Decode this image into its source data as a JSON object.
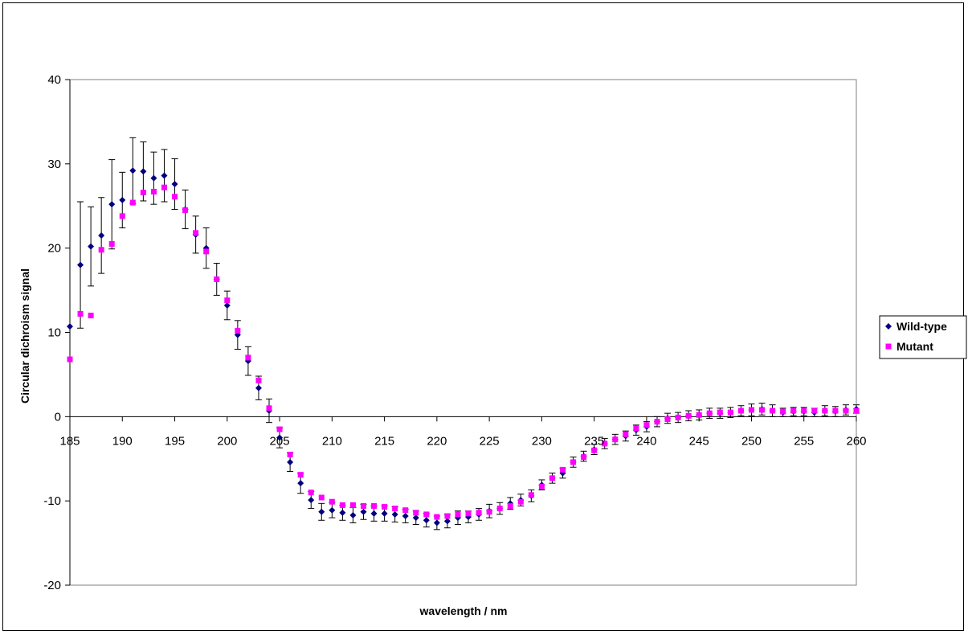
{
  "chart_data": {
    "type": "scatter",
    "title": "",
    "xlabel": "wavelength / nm",
    "ylabel": "Circular dichroism signal",
    "xlim": [
      185,
      260
    ],
    "ylim": [
      -20,
      40
    ],
    "x_ticks": [
      "185",
      "190",
      "195",
      "200",
      "205",
      "210",
      "215",
      "220",
      "225",
      "230",
      "235",
      "240",
      "245",
      "250",
      "255",
      "260"
    ],
    "y_ticks": [
      "40",
      "30",
      "20",
      "10",
      "0",
      "-10",
      "-20"
    ],
    "grid": false,
    "legend_position": "right",
    "x": [
      185,
      186,
      187,
      188,
      189,
      190,
      191,
      192,
      193,
      194,
      195,
      196,
      197,
      198,
      199,
      200,
      201,
      202,
      203,
      204,
      205,
      206,
      207,
      208,
      209,
      210,
      211,
      212,
      213,
      214,
      215,
      216,
      217,
      218,
      219,
      220,
      221,
      222,
      223,
      224,
      225,
      226,
      227,
      228,
      229,
      230,
      231,
      232,
      233,
      234,
      235,
      236,
      237,
      238,
      239,
      240,
      241,
      242,
      243,
      244,
      245,
      246,
      247,
      248,
      249,
      250,
      251,
      252,
      253,
      254,
      255,
      256,
      257,
      258,
      259,
      260
    ],
    "series": [
      {
        "name": "Wild-type",
        "color": "#000080",
        "marker": "diamond",
        "values": [
          10.7,
          18.0,
          20.2,
          21.5,
          25.2,
          25.7,
          29.2,
          29.1,
          28.3,
          28.6,
          27.6,
          24.6,
          21.6,
          20.0,
          16.3,
          13.2,
          9.7,
          6.6,
          3.4,
          0.7,
          -2.5,
          -5.4,
          -7.9,
          -9.9,
          -11.3,
          -11.1,
          -11.4,
          -11.7,
          -11.3,
          -11.5,
          -11.5,
          -11.6,
          -11.8,
          -12.0,
          -12.3,
          -12.6,
          -12.4,
          -12.0,
          -11.9,
          -11.6,
          -11.2,
          -10.9,
          -10.3,
          -9.9,
          -9.4,
          -8.1,
          -7.3,
          -6.7,
          -5.4,
          -4.7,
          -3.9,
          -3.2,
          -2.7,
          -2.3,
          -1.6,
          -1.2,
          -0.6,
          -0.2,
          -0.1,
          0.1,
          0.2,
          0.4,
          0.4,
          0.5,
          0.7,
          0.8,
          0.9,
          0.7,
          0.5,
          0.6,
          0.6,
          0.5,
          0.7,
          0.6,
          0.8,
          0.9
        ],
        "error": [
          0,
          7.5,
          4.7,
          4.5,
          5.3,
          3.3,
          3.9,
          3.5,
          3.1,
          3.1,
          3.0,
          2.3,
          2.2,
          2.4,
          1.9,
          1.7,
          1.7,
          1.7,
          1.4,
          1.4,
          1.2,
          1.1,
          1.2,
          1.0,
          1.0,
          0.9,
          0.9,
          0.9,
          0.9,
          0.9,
          0.9,
          0.9,
          0.8,
          0.8,
          0.8,
          0.8,
          0.8,
          0.8,
          0.7,
          0.7,
          0.8,
          0.7,
          0.7,
          0.7,
          0.7,
          0.6,
          0.6,
          0.6,
          0.6,
          0.6,
          0.6,
          0.6,
          0.6,
          0.6,
          0.6,
          0.6,
          0.6,
          0.6,
          0.6,
          0.6,
          0.6,
          0.6,
          0.6,
          0.6,
          0.6,
          0.7,
          0.7,
          0.7,
          0.5,
          0.5,
          0.5,
          0.5,
          0.6,
          0.6,
          0.6,
          0.5
        ]
      },
      {
        "name": "Mutant",
        "color": "#FF00FF",
        "marker": "square",
        "values": [
          6.8,
          12.2,
          12.0,
          19.8,
          20.5,
          23.8,
          25.4,
          26.6,
          26.7,
          27.2,
          26.1,
          24.5,
          21.8,
          19.6,
          16.3,
          13.8,
          10.2,
          7.0,
          4.3,
          1.0,
          -1.5,
          -4.5,
          -6.9,
          -9.0,
          -9.6,
          -10.1,
          -10.5,
          -10.5,
          -10.6,
          -10.6,
          -10.7,
          -10.9,
          -11.1,
          -11.4,
          -11.6,
          -11.9,
          -11.8,
          -11.6,
          -11.5,
          -11.4,
          -11.3,
          -10.9,
          -10.6,
          -10.1,
          -9.3,
          -8.3,
          -7.3,
          -6.3,
          -5.4,
          -4.8,
          -4.0,
          -3.2,
          -2.7,
          -2.1,
          -1.4,
          -1.0,
          -0.6,
          -0.3,
          -0.1,
          0.1,
          0.2,
          0.4,
          0.5,
          0.5,
          0.7,
          0.8,
          0.8,
          0.7,
          0.6,
          0.7,
          0.7,
          0.7,
          0.7,
          0.7,
          0.7,
          0.7
        ]
      }
    ]
  }
}
